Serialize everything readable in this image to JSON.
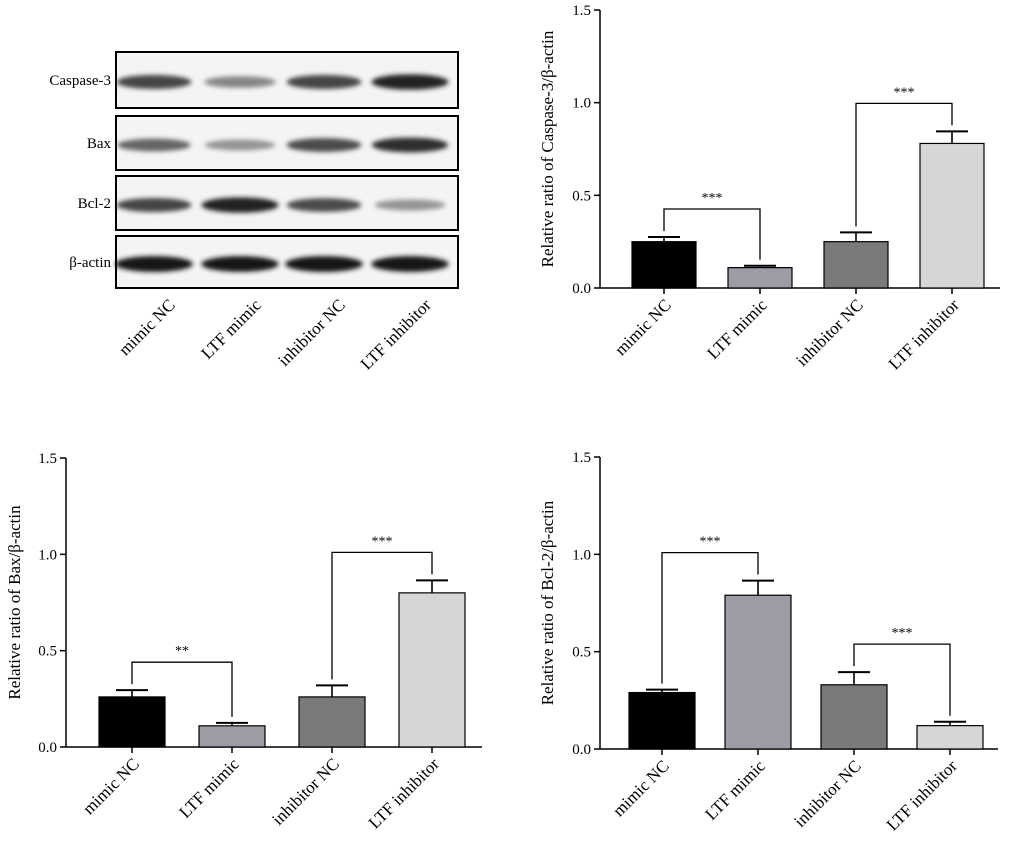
{
  "western_blot": {
    "rows": [
      "Caspase-3",
      "Bax",
      "Bcl-2",
      "β-actin"
    ],
    "lanes": [
      "mimic NC",
      "LTF mimic",
      "inhibitor NC",
      "LTF inhibitor"
    ],
    "band_intensity": [
      [
        0.75,
        0.45,
        0.75,
        0.92
      ],
      [
        0.6,
        0.38,
        0.72,
        0.85
      ],
      [
        0.75,
        0.92,
        0.72,
        0.38
      ],
      [
        0.98,
        0.96,
        0.98,
        0.96
      ]
    ]
  },
  "chart_data": [
    {
      "type": "bar",
      "categories": [
        "mimic NC",
        "LTF mimic",
        "inhibitor NC",
        "LTF inhibitor"
      ],
      "values": [
        0.25,
        0.11,
        0.25,
        0.78
      ],
      "errors": [
        0.025,
        0.01,
        0.05,
        0.065
      ],
      "colors": [
        "#000000",
        "#9c9ca4",
        "#7a7a7a",
        "#d6d6d6"
      ],
      "ylabel": "Relative ratio of Caspase-3/β-actin",
      "ylim": [
        0,
        1.5
      ],
      "yticks": [
        "0.0",
        "0.5",
        "1.0",
        "1.5"
      ],
      "significance": [
        {
          "from": 0,
          "to": 1,
          "label": "***"
        },
        {
          "from": 2,
          "to": 3,
          "label": "***"
        }
      ]
    },
    {
      "type": "bar",
      "categories": [
        "mimic NC",
        "LTF mimic",
        "inhibitor NC",
        "LTF inhibitor"
      ],
      "values": [
        0.26,
        0.11,
        0.26,
        0.8
      ],
      "errors": [
        0.035,
        0.015,
        0.06,
        0.065
      ],
      "colors": [
        "#000000",
        "#9c9ca4",
        "#7a7a7a",
        "#d6d6d6"
      ],
      "ylabel": "Relative ratio of Bax/β-actin",
      "ylim": [
        0,
        1.5
      ],
      "yticks": [
        "0.0",
        "0.5",
        "1.0",
        "1.5"
      ],
      "significance": [
        {
          "from": 0,
          "to": 1,
          "label": "**"
        },
        {
          "from": 2,
          "to": 3,
          "label": "***"
        }
      ]
    },
    {
      "type": "bar",
      "categories": [
        "mimic NC",
        "LTF mimic",
        "inhibitor NC",
        "LTF inhibitor"
      ],
      "values": [
        0.29,
        0.79,
        0.33,
        0.12
      ],
      "errors": [
        0.015,
        0.075,
        0.065,
        0.02
      ],
      "colors": [
        "#000000",
        "#9c9ca4",
        "#7a7a7a",
        "#d6d6d6"
      ],
      "ylabel": "Relative ratio of Bcl-2/β-actin",
      "ylim": [
        0,
        1.5
      ],
      "yticks": [
        "0.0",
        "0.5",
        "1.0",
        "1.5"
      ],
      "significance": [
        {
          "from": 0,
          "to": 1,
          "label": "***"
        },
        {
          "from": 2,
          "to": 3,
          "label": "***"
        }
      ]
    }
  ]
}
